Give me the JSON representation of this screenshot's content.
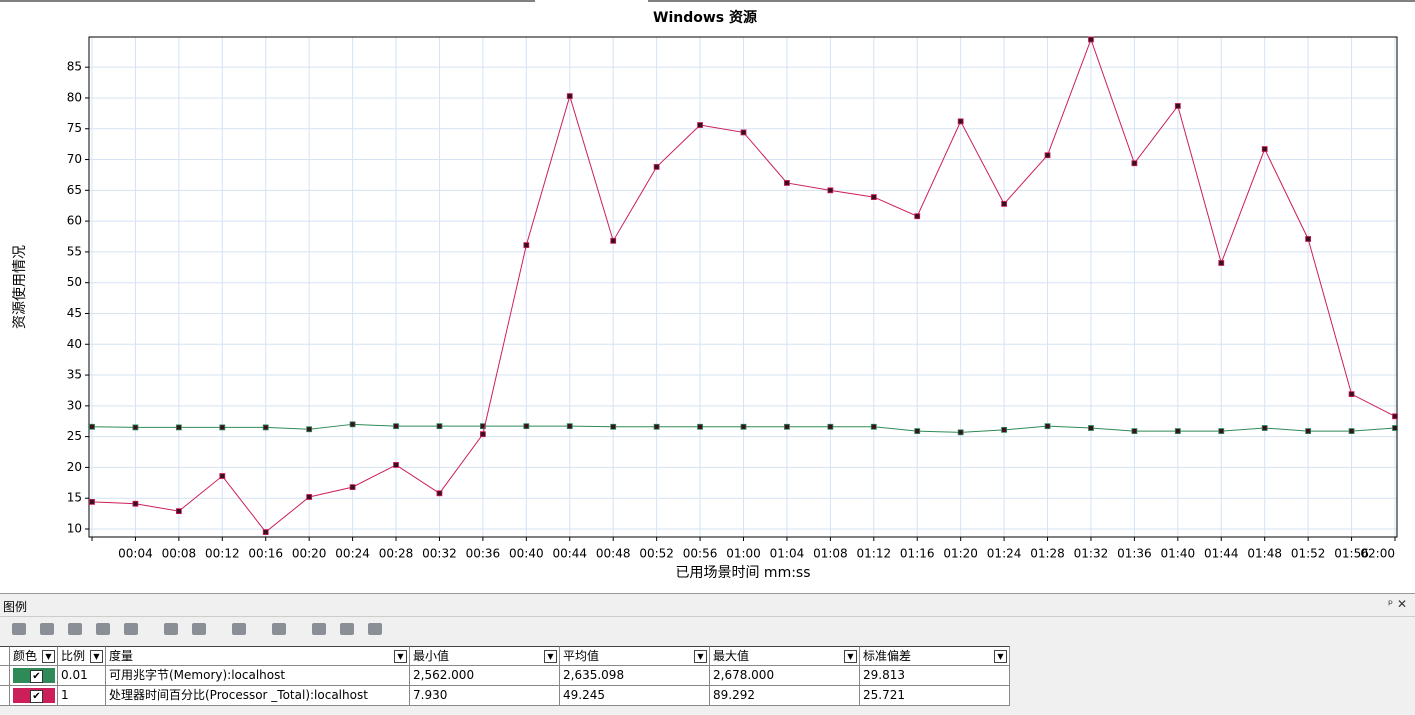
{
  "chart_data": {
    "type": "line",
    "title": "Windows 资源",
    "ylabel": "资源使用情况",
    "xlabel": "已用场景时间 mm:ss",
    "categories": [
      null,
      "00:04",
      "00:08",
      "00:12",
      "00:16",
      "00:20",
      "00:24",
      "00:28",
      "00:32",
      "00:36",
      "00:40",
      "00:44",
      "00:48",
      "00:52",
      "00:56",
      "01:00",
      "01:04",
      "01:08",
      "01:12",
      "01:16",
      "01:20",
      "01:24",
      "01:28",
      "01:32",
      "01:36",
      "01:40",
      "01:44",
      "01:48",
      "01:52",
      "01:56",
      "02:00"
    ],
    "series": [
      {
        "name": "可用兆字节(Memory):localhost",
        "color": "#2e8b57",
        "values": [
          26.6,
          26.5,
          26.5,
          26.5,
          26.5,
          26.2,
          27.0,
          26.7,
          26.7,
          26.7,
          26.7,
          26.7,
          26.6,
          26.6,
          26.6,
          26.6,
          26.6,
          26.6,
          26.6,
          25.9,
          25.7,
          26.1,
          26.7,
          26.4,
          25.9,
          25.9,
          25.9,
          26.4,
          25.9,
          25.9,
          26.4
        ]
      },
      {
        "name": "处理器时间百分比(Processor _Total):localhost",
        "color": "#cc1f5a",
        "values": [
          14.4,
          14.1,
          12.9,
          18.6,
          9.5,
          15.2,
          16.8,
          20.4,
          15.8,
          25.4,
          56.1,
          80.3,
          56.8,
          68.8,
          75.6,
          74.4,
          66.2,
          65.0,
          63.9,
          60.8,
          76.2,
          62.8,
          70.7,
          89.5,
          69.4,
          78.7,
          53.2,
          71.7,
          57.1,
          31.9,
          28.3
        ]
      }
    ],
    "ylim": [
      8.7,
      89.9
    ],
    "yticks": [
      10,
      15,
      20,
      25,
      30,
      35,
      40,
      45,
      50,
      55,
      60,
      65,
      70,
      75,
      80,
      85
    ],
    "grid": true
  },
  "legend": {
    "title": "图例",
    "columns": [
      "颜色",
      "比例",
      "度量",
      "最小值",
      "平均值",
      "最大值",
      "标准偏差"
    ],
    "rows": [
      [
        "0.01",
        "可用兆字节(Memory):localhost",
        "2,562.000",
        "2,635.098",
        "2,678.000",
        "29.813"
      ],
      [
        "1",
        "处理器时间百分比(Processor _Total):localhost",
        "7.930",
        "49.245",
        "89.292",
        "25.721"
      ]
    ]
  }
}
